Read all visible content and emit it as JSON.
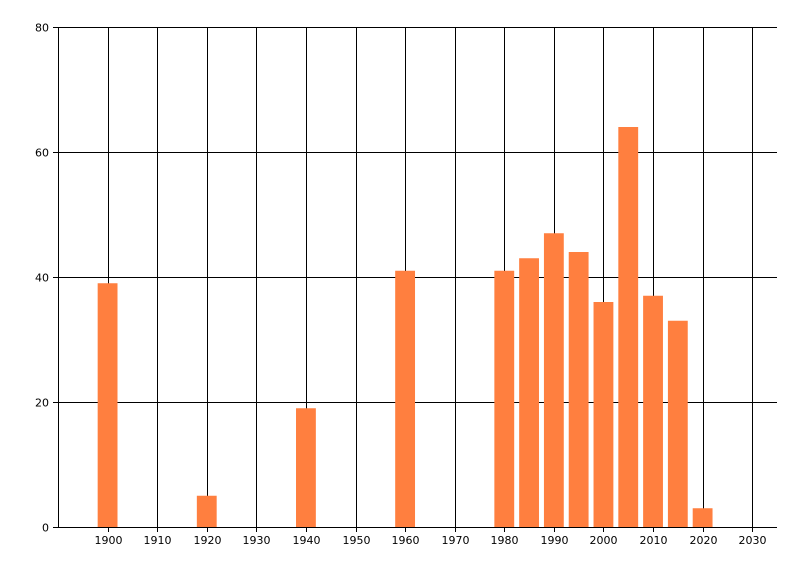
{
  "chart_data": {
    "type": "bar",
    "title": "",
    "xlabel": "",
    "ylabel": "",
    "x": [
      1900,
      1920,
      1940,
      1960,
      1980,
      1985,
      1990,
      1995,
      2000,
      2005,
      2010,
      2015,
      2020
    ],
    "values": [
      39,
      5,
      19,
      41,
      41,
      43,
      47,
      44,
      36,
      64,
      37,
      33,
      3
    ],
    "xlim": [
      1890,
      2035
    ],
    "ylim": [
      0,
      80
    ],
    "bar_width_years": 4,
    "x_ticks": [
      1900,
      1910,
      1920,
      1930,
      1940,
      1950,
      1960,
      1970,
      1980,
      1990,
      2000,
      2010,
      2020,
      2030
    ],
    "y_ticks": [
      0,
      20,
      40,
      60,
      80
    ],
    "grid": true,
    "legend": "none",
    "colors": {
      "bar": "#FF7F3F",
      "grid": "#000000",
      "axis": "#000000",
      "background": "#FFFFFF"
    }
  }
}
